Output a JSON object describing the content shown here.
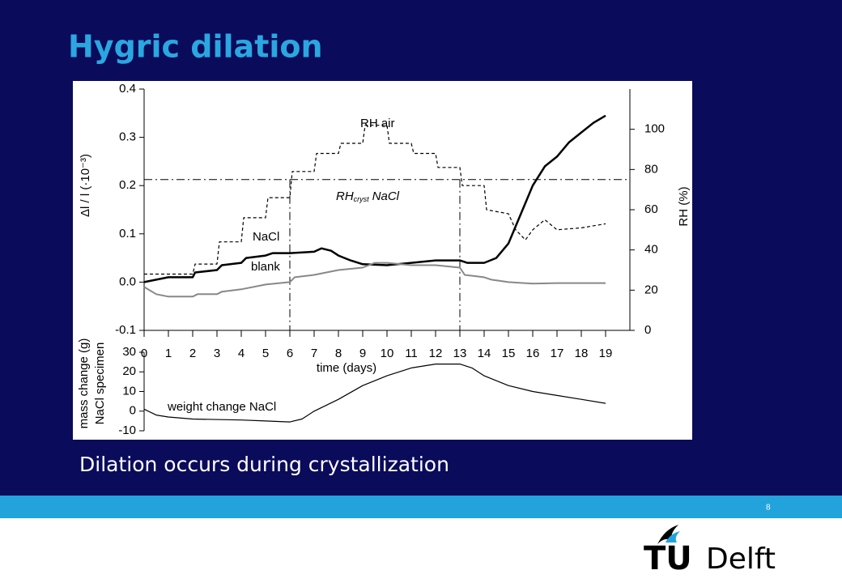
{
  "title": "Hygric dilation",
  "caption": "Dilation occurs during crystallization",
  "page_number": "8",
  "logo": {
    "mark": "TU",
    "name": "Delft"
  },
  "chart_data": [
    {
      "type": "line",
      "ylabel": "Δl / l   (·10⁻³)",
      "y2label": "RH (%)",
      "xlabel": "time (days)",
      "xlim": [
        0,
        20
      ],
      "xticks": [
        0,
        1,
        2,
        3,
        4,
        5,
        6,
        7,
        8,
        9,
        10,
        11,
        12,
        13,
        14,
        15,
        16,
        17,
        18,
        19
      ],
      "ylim": [
        -0.1,
        0.4
      ],
      "yticks": [
        -0.1,
        {
          "value": 0,
          "label": "0.0"
        },
        0.1,
        0.2,
        0.3,
        0.4
      ],
      "y2lim": [
        0,
        120
      ],
      "y2ticks": [
        0,
        20,
        40,
        60,
        80,
        100
      ],
      "y2_reference": 75,
      "x_reference": [
        6,
        13
      ],
      "annotations": [
        "RH air",
        "NaCl",
        "blank"
      ],
      "rh_cryst_label": {
        "main": "RH",
        "sub": "cryst",
        "rest": "NaCl"
      },
      "series": [
        {
          "name": "NaCl",
          "color": "#000000",
          "width": 2.5,
          "x": [
            0,
            0.5,
            1,
            2,
            2.1,
            3,
            3.2,
            4,
            4.2,
            5,
            5.3,
            6,
            7,
            7.3,
            7.7,
            8,
            8.5,
            9,
            10,
            11,
            12,
            13,
            13.3,
            14,
            14.5,
            15,
            15.5,
            16,
            16.5,
            17,
            17.5,
            18,
            18.5,
            19
          ],
          "values": [
            0,
            0.005,
            0.01,
            0.01,
            0.02,
            0.025,
            0.035,
            0.04,
            0.05,
            0.055,
            0.06,
            0.06,
            0.063,
            0.07,
            0.065,
            0.055,
            0.045,
            0.037,
            0.035,
            0.04,
            0.045,
            0.045,
            0.04,
            0.04,
            0.05,
            0.08,
            0.14,
            0.2,
            0.24,
            0.26,
            0.29,
            0.31,
            0.33,
            0.345
          ]
        },
        {
          "name": "blank",
          "color": "#888888",
          "width": 2,
          "x": [
            0,
            0.5,
            1,
            2,
            2.2,
            3,
            3.2,
            4,
            5,
            6,
            6.2,
            7,
            8,
            9,
            9.5,
            10,
            11,
            12,
            13,
            13.2,
            14,
            14.3,
            15,
            16,
            17,
            19
          ],
          "values": [
            -0.01,
            -0.025,
            -0.03,
            -0.03,
            -0.025,
            -0.025,
            -0.02,
            -0.015,
            -0.005,
            0,
            0.01,
            0.015,
            0.025,
            0.03,
            0.04,
            0.04,
            0.035,
            0.035,
            0.03,
            0.015,
            0.01,
            0.005,
            0,
            -0.003,
            -0.002,
            -0.002
          ]
        },
        {
          "name": "RH air",
          "color": "#000000",
          "width": 1.2,
          "dash": true,
          "axis": "y2",
          "x": [
            0,
            2,
            2.1,
            3,
            3.1,
            4,
            4.1,
            5,
            5.1,
            6,
            6.1,
            7,
            7.1,
            8,
            8.1,
            9,
            9.1,
            10,
            10.1,
            11,
            11.1,
            12,
            12.1,
            13,
            13.1,
            14,
            14.1,
            15,
            15.3,
            15.7,
            16,
            16.5,
            17,
            18,
            19
          ],
          "values": [
            28,
            28,
            33,
            33,
            44,
            44,
            56,
            56,
            66,
            66,
            79,
            79,
            88,
            88,
            93,
            93,
            102,
            102,
            93,
            93,
            88,
            88,
            81,
            81,
            72,
            72,
            60,
            58,
            50,
            45,
            50,
            55,
            50,
            51,
            53
          ]
        }
      ]
    },
    {
      "type": "line",
      "ylabel": [
        "mass change (g)",
        "NaCl specimen"
      ],
      "xlim": [
        0,
        20
      ],
      "ylim": [
        -10,
        30
      ],
      "yticks": [
        -10,
        0,
        10,
        20,
        30
      ],
      "annotations": [
        "weight change NaCl"
      ],
      "series": [
        {
          "name": "weight change NaCl",
          "color": "#000000",
          "width": 1.2,
          "x": [
            0,
            0.5,
            1,
            2,
            4,
            5,
            6,
            6.5,
            7,
            8,
            9,
            10,
            11,
            12,
            13,
            13.5,
            14,
            15,
            16,
            17,
            18,
            19
          ],
          "values": [
            1,
            -2,
            -3,
            -4,
            -4.5,
            -5,
            -5.5,
            -4,
            0,
            6,
            13,
            18,
            22,
            24,
            24,
            22,
            18,
            13,
            10,
            8,
            6,
            4
          ]
        }
      ]
    }
  ]
}
